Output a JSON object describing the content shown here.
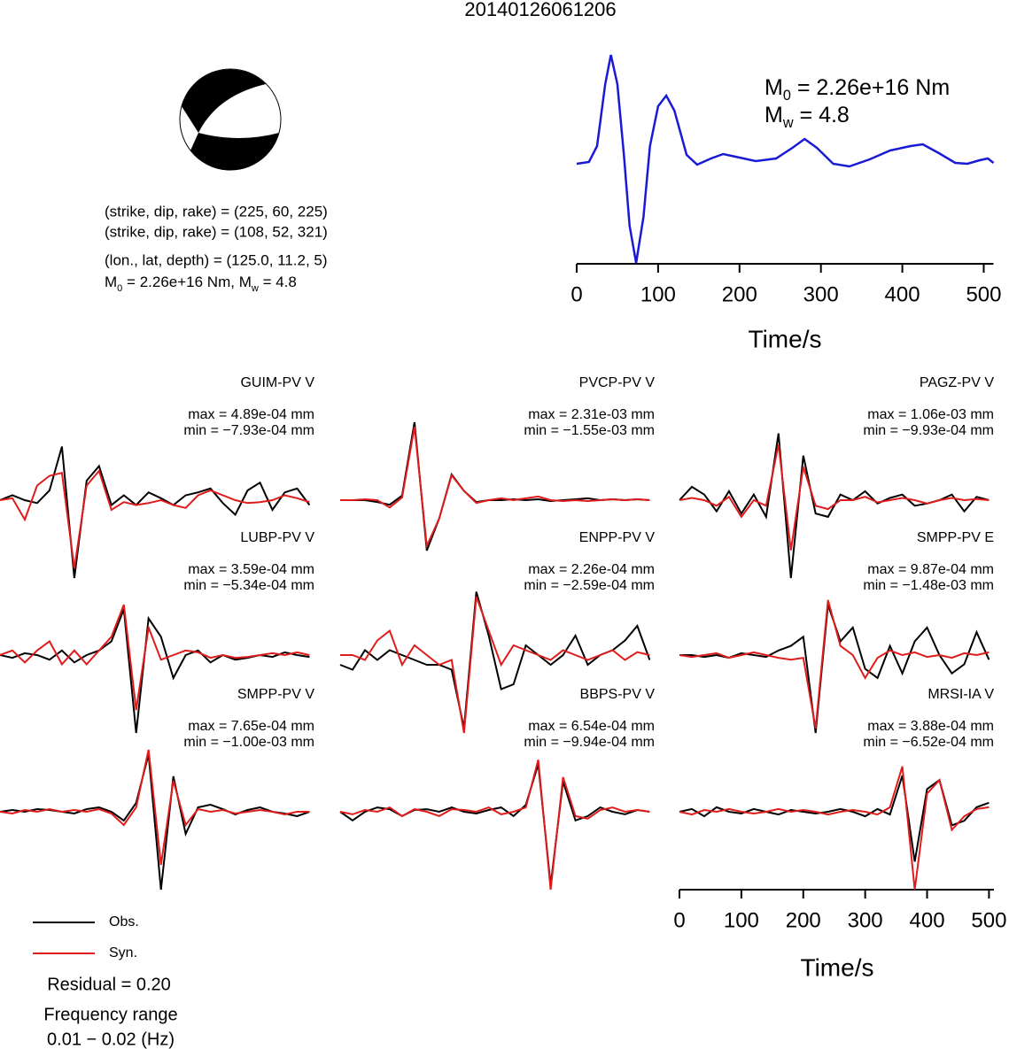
{
  "title": "20140126061206",
  "mechanism": {
    "lines": [
      "(strike, dip, rake) = (225, 60, 225)",
      "(strike, dip, rake) = (108, 52, 321)",
      "(lon., lat, depth) = (125.0, 11.2, 5)"
    ],
    "moment": [
      "M",
      "0",
      " = 2.26e+16 Nm, M",
      "w",
      " = 4.8"
    ]
  },
  "chart_data": [
    {
      "type": "line",
      "color": "#1a1ad6",
      "x": [
        0,
        15,
        25,
        35,
        42,
        50,
        58,
        65,
        73,
        82,
        90,
        100,
        110,
        120,
        135,
        148,
        165,
        180,
        200,
        220,
        245,
        265,
        280,
        295,
        315,
        335,
        360,
        385,
        410,
        425,
        445,
        465,
        480,
        495,
        505,
        512
      ],
      "values": [
        0,
        2,
        20,
        90,
        123,
        90,
        10,
        -70,
        -112,
        -60,
        20,
        65,
        77,
        60,
        10,
        -1,
        6,
        11,
        7,
        3,
        6,
        18,
        28,
        18,
        0,
        -3,
        5,
        15,
        20,
        22,
        12,
        1,
        0,
        4,
        6,
        1
      ],
      "xlim": [
        0,
        512
      ],
      "xticks": [
        0,
        100,
        200,
        300,
        400,
        500
      ],
      "xlabel": "Time/s",
      "annotations": [
        [
          "M",
          "0",
          " = 2.26e+16 Nm"
        ],
        [
          "M",
          "w",
          " = 4.8"
        ]
      ]
    },
    {
      "type": "waveforms",
      "x": [
        0,
        20,
        40,
        60,
        80,
        100,
        120,
        140,
        160,
        180,
        200,
        220,
        240,
        260,
        280,
        300,
        320,
        340,
        360,
        380,
        400,
        420,
        440,
        460,
        480,
        500
      ],
      "xlim": [
        0,
        508
      ],
      "xticks": [
        0,
        100,
        200,
        300,
        400,
        500
      ],
      "xlabel": "Time/s",
      "legend": [
        {
          "name": "Obs.",
          "color": "#000000"
        },
        {
          "name": "Syn.",
          "color": "#e01b1b"
        }
      ],
      "panels": [
        {
          "name": "GUIM-PV V",
          "max": "max = 4.89e-04 mm",
          "min": "min = −7.93e-04 mm",
          "obs": [
            0,
            5,
            0,
            -3,
            10,
            55,
            -80,
            20,
            35,
            -5,
            5,
            -5,
            8,
            2,
            -5,
            5,
            8,
            12,
            -3,
            -15,
            10,
            18,
            -10,
            8,
            12,
            -5
          ],
          "syn": [
            0,
            2,
            -20,
            15,
            25,
            28,
            -70,
            15,
            30,
            -10,
            -2,
            -5,
            -3,
            0,
            -5,
            -8,
            5,
            10,
            5,
            0,
            -3,
            -2,
            0,
            5,
            2,
            -2
          ]
        },
        {
          "name": "PVCP-PV V",
          "max": "max = 2.31e-03 mm",
          "min": "min = −1.55e-03 mm",
          "obs": [
            0,
            0,
            0,
            -2,
            -5,
            5,
            85,
            -55,
            -20,
            28,
            10,
            -2,
            0,
            0,
            1,
            0,
            1,
            -1,
            0,
            1,
            2,
            0,
            1,
            0,
            1,
            0
          ],
          "syn": [
            0,
            0,
            1,
            0,
            -8,
            3,
            80,
            -50,
            -20,
            27,
            10,
            -3,
            0,
            2,
            0,
            2,
            4,
            0,
            -1,
            0,
            -1,
            0,
            1,
            0,
            1,
            0
          ]
        },
        {
          "name": "PAGZ-PV V",
          "max": "max = 1.06e-03 mm",
          "min": "min = −9.93e-04 mm",
          "obs": [
            0,
            12,
            5,
            -10,
            8,
            -12,
            5,
            -15,
            60,
            -70,
            40,
            -12,
            -15,
            5,
            0,
            8,
            -3,
            2,
            5,
            -5,
            -3,
            0,
            5,
            -10,
            3,
            0
          ],
          "syn": [
            0,
            2,
            0,
            -5,
            3,
            -15,
            0,
            -5,
            50,
            -45,
            30,
            -5,
            -8,
            0,
            0,
            3,
            -2,
            0,
            2,
            0,
            -3,
            0,
            2,
            0,
            1,
            0
          ]
        },
        {
          "name": "LUBP-PV V",
          "max": "max = 3.59e-04 mm",
          "min": "min = −5.34e-04 mm",
          "obs": [
            0,
            -3,
            2,
            0,
            -5,
            5,
            -8,
            0,
            5,
            15,
            50,
            -85,
            40,
            20,
            -25,
            0,
            5,
            -8,
            0,
            -5,
            -3,
            0,
            -2,
            3,
            0,
            -2
          ],
          "syn": [
            0,
            5,
            -8,
            5,
            15,
            -10,
            5,
            -10,
            5,
            20,
            55,
            -60,
            30,
            -5,
            0,
            5,
            3,
            -3,
            0,
            -3,
            -2,
            0,
            2,
            0,
            3,
            0
          ]
        },
        {
          "name": "ENPP-PV V",
          "max": "max = 2.26e-04 mm",
          "min": "min = −2.59e-04 mm",
          "obs": [
            -10,
            -15,
            5,
            -5,
            5,
            0,
            -5,
            -10,
            -10,
            -15,
            -75,
            65,
            20,
            -35,
            -30,
            10,
            0,
            -10,
            0,
            20,
            -10,
            0,
            5,
            15,
            30,
            -5
          ],
          "syn": [
            0,
            0,
            -5,
            15,
            25,
            -10,
            10,
            0,
            -10,
            -5,
            -80,
            60,
            25,
            -10,
            10,
            5,
            0,
            -5,
            5,
            0,
            -5,
            0,
            5,
            -5,
            3,
            0
          ]
        },
        {
          "name": "SMPP-PV E",
          "max": "max = 9.87e-04 mm",
          "min": "min = −1.48e-03 mm",
          "obs": [
            0,
            0,
            -2,
            0,
            -3,
            2,
            0,
            -2,
            5,
            10,
            20,
            -85,
            55,
            15,
            30,
            -15,
            -25,
            10,
            -20,
            15,
            30,
            0,
            -20,
            -10,
            25,
            -5
          ],
          "syn": [
            0,
            -2,
            0,
            2,
            -3,
            0,
            3,
            0,
            -3,
            -5,
            -3,
            -80,
            60,
            10,
            0,
            -25,
            -3,
            5,
            0,
            3,
            -2,
            0,
            -3,
            2,
            0,
            3
          ]
        },
        {
          "name": "SMPP-PV V",
          "max": "max = 7.65e-04 mm",
          "min": "min = −1.00e-03 mm",
          "obs": [
            0,
            2,
            0,
            3,
            2,
            0,
            -2,
            3,
            5,
            0,
            -10,
            10,
            65,
            -88,
            40,
            -25,
            5,
            8,
            3,
            -3,
            2,
            5,
            0,
            -2,
            -5,
            0
          ],
          "syn": [
            0,
            -2,
            2,
            0,
            3,
            0,
            2,
            0,
            3,
            -2,
            -15,
            5,
            70,
            -60,
            35,
            -15,
            3,
            0,
            2,
            -2,
            0,
            2,
            0,
            -3,
            0,
            0
          ]
        },
        {
          "name": "BBPS-PV V",
          "max": "max = 6.54e-04 mm",
          "min": "min = −9.94e-04 mm",
          "obs": [
            0,
            -10,
            0,
            5,
            3,
            -5,
            2,
            3,
            0,
            5,
            0,
            -2,
            2,
            5,
            -5,
            8,
            55,
            -85,
            35,
            -10,
            -5,
            5,
            0,
            -3,
            2,
            0
          ],
          "syn": [
            0,
            -3,
            2,
            0,
            5,
            -5,
            3,
            0,
            -5,
            3,
            2,
            0,
            5,
            -3,
            0,
            5,
            60,
            -90,
            40,
            -5,
            -8,
            2,
            5,
            0,
            2,
            0
          ]
        },
        {
          "name": "MRSI-IA V",
          "max": "max = 3.88e-04 mm",
          "min": "min = −6.52e-04 mm",
          "obs": [
            0,
            3,
            -5,
            5,
            0,
            -2,
            3,
            0,
            -3,
            2,
            0,
            -2,
            0,
            3,
            0,
            -5,
            3,
            -3,
            40,
            -55,
            25,
            35,
            -15,
            -10,
            5,
            10
          ],
          "syn": [
            0,
            -3,
            2,
            0,
            3,
            0,
            -2,
            0,
            3,
            0,
            2,
            0,
            -3,
            0,
            2,
            0,
            -3,
            5,
            50,
            -86,
            20,
            35,
            -20,
            -5,
            3,
            5
          ]
        }
      ]
    }
  ],
  "residual": "Residual = 0.20",
  "frequency": [
    "Frequency range",
    "0.01 − 0.02 (Hz)"
  ]
}
